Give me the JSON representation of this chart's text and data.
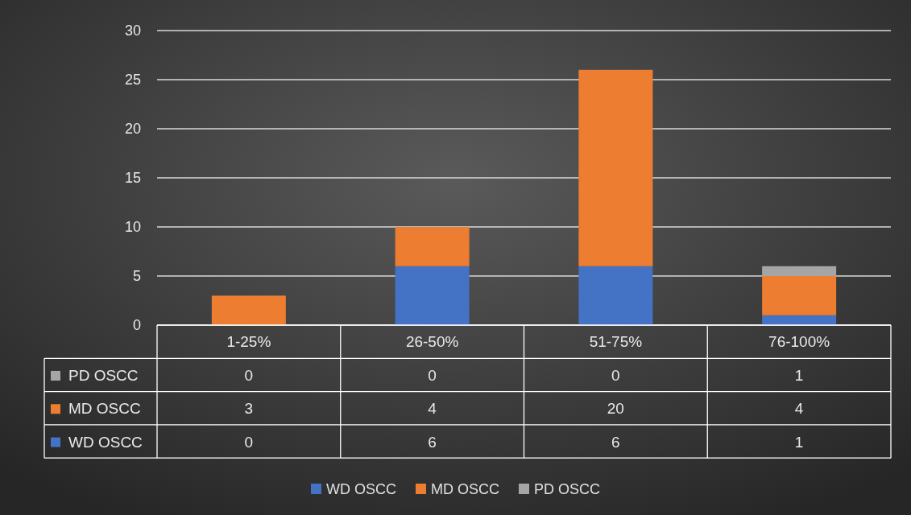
{
  "chart_data": {
    "type": "bar",
    "stacked": true,
    "categories": [
      "1-25%",
      "26-50%",
      "51-75%",
      "76-100%"
    ],
    "series": [
      {
        "name": "WD OSCC",
        "color": "#4472c4",
        "values": [
          0,
          6,
          6,
          1
        ]
      },
      {
        "name": "MD OSCC",
        "color": "#ed7d31",
        "values": [
          3,
          4,
          20,
          4
        ]
      },
      {
        "name": "PD OSCC",
        "color": "#a5a5a5",
        "values": [
          0,
          0,
          0,
          1
        ]
      }
    ],
    "ylim": [
      0,
      30
    ],
    "yticks": [
      0,
      5,
      10,
      15,
      20,
      25,
      30
    ],
    "grid": "y",
    "legend": "bottom",
    "data_labels": true
  }
}
